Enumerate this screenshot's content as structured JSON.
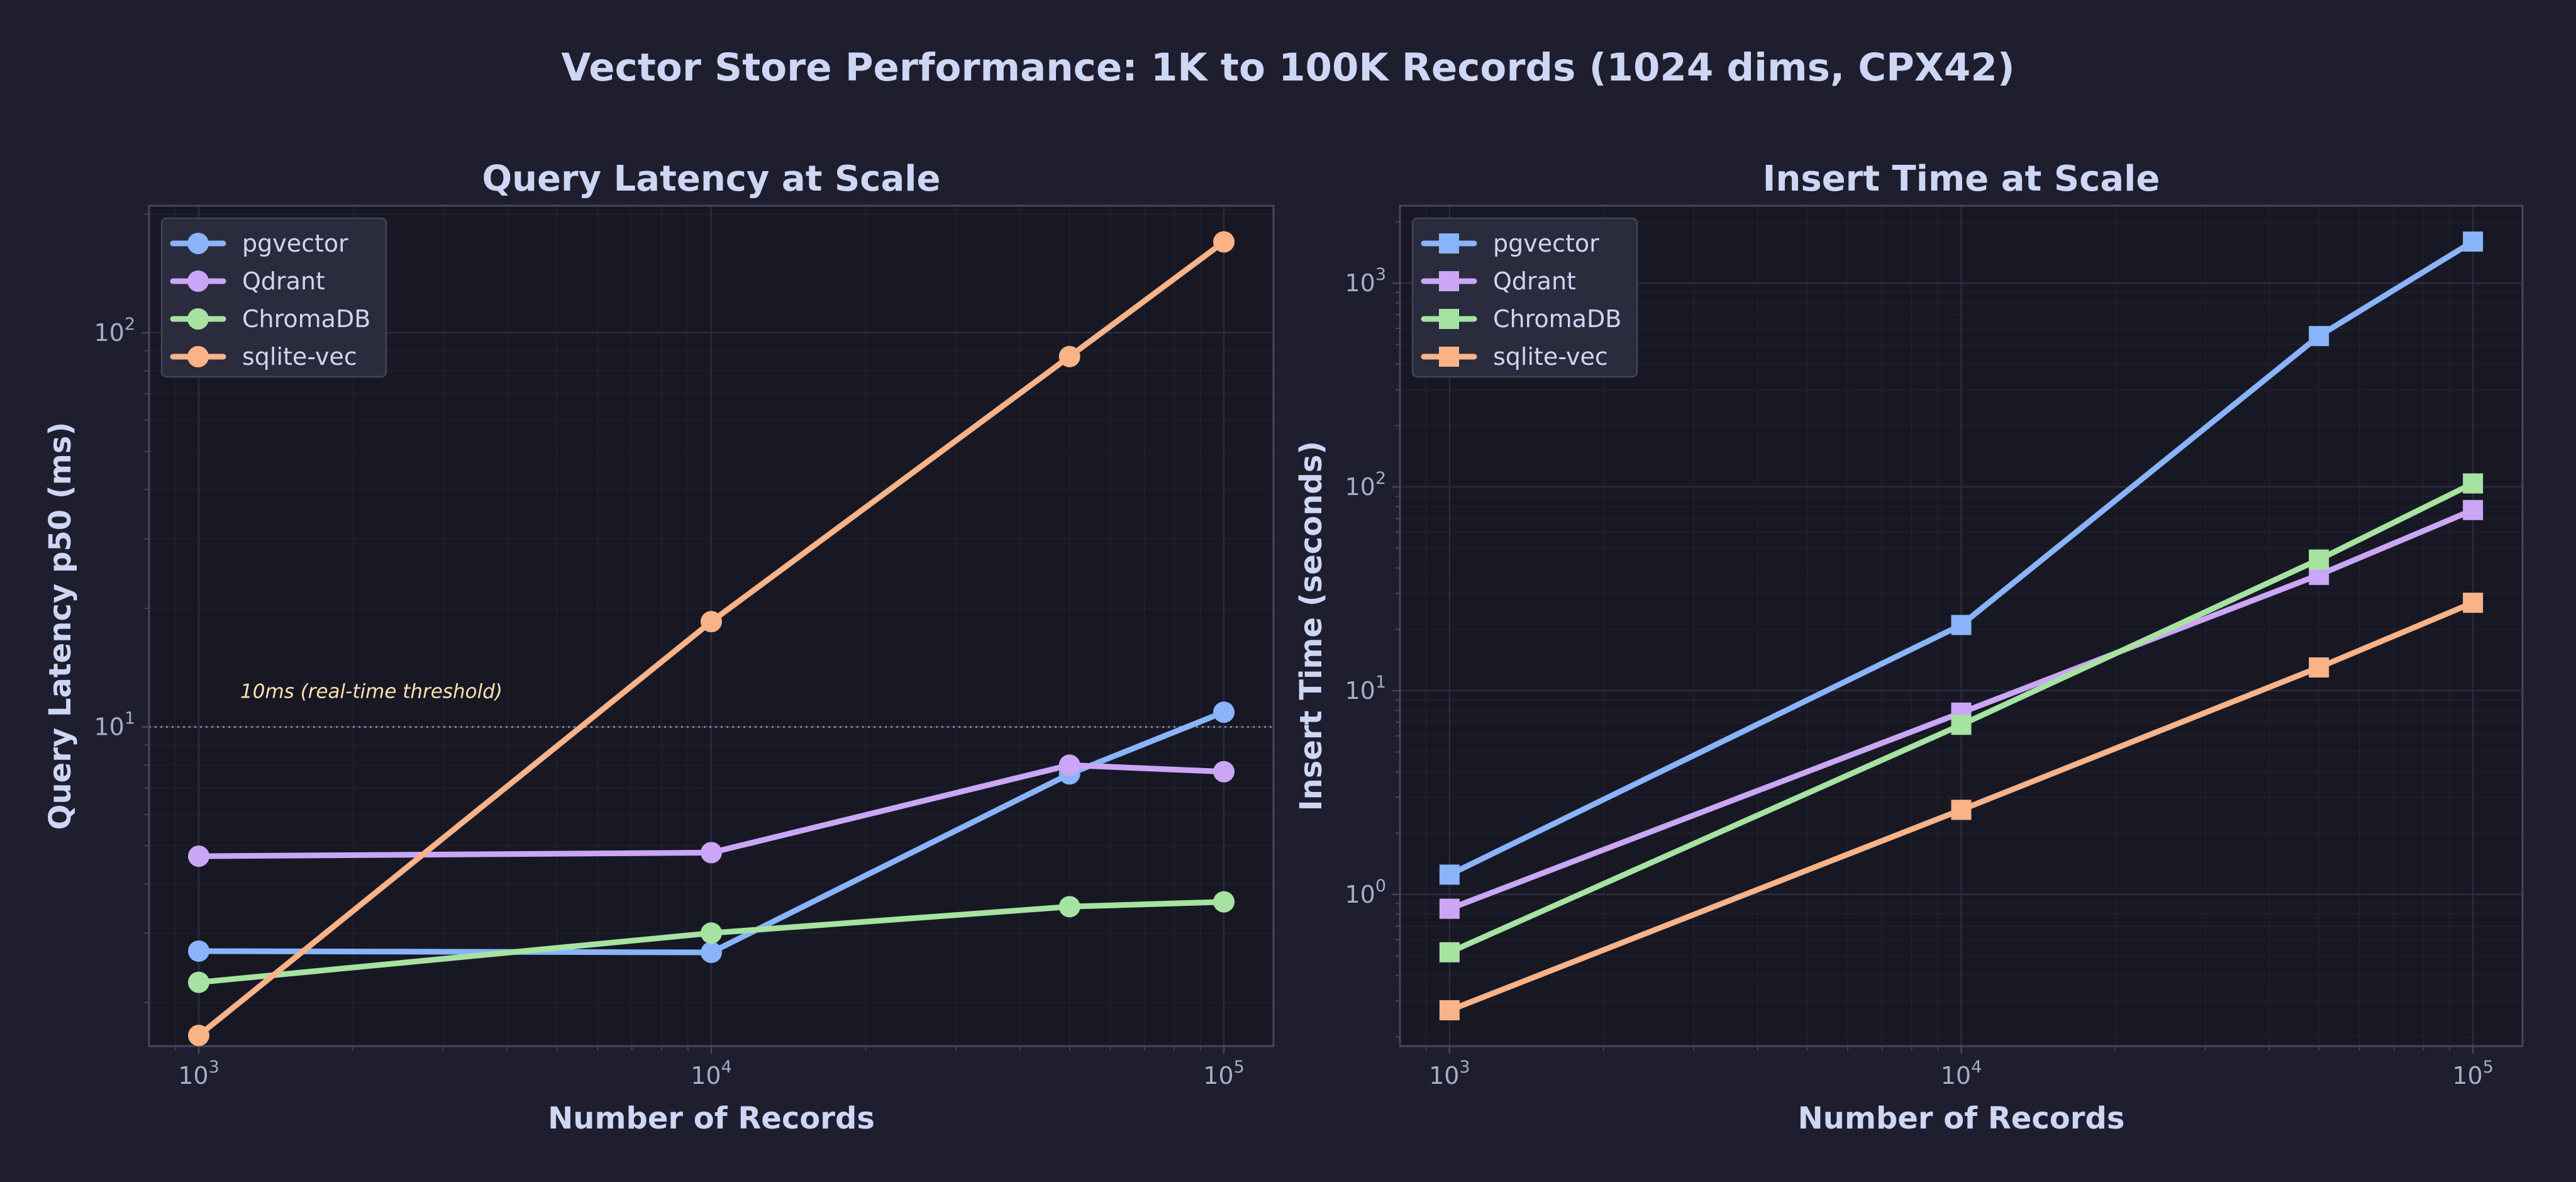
{
  "title": "Vector Store Performance: 1K to 100K Records (1024 dims, CPX42)",
  "colors": {
    "background": "#1e1e2e",
    "plot_background": "#181825",
    "spine": "#45475a",
    "grid": "#2a2b3c",
    "text": "#cdd6f4",
    "tick_text": "#a6adc8",
    "threshold": "#7f849c",
    "annotation": "#f9e2af",
    "legend_bg": "#2b2d3f",
    "legend_border": "#45475a"
  },
  "chart_data": [
    {
      "type": "line",
      "title": "Query Latency at Scale",
      "xlabel": "Number of Records",
      "ylabel": "Query Latency p50 (ms)",
      "xscale": "log",
      "yscale": "log",
      "xlim": [
        800,
        125000
      ],
      "ylim": [
        1.55,
        210
      ],
      "xticks": [
        {
          "value": 1000,
          "base": "10",
          "exp": "3"
        },
        {
          "value": 10000,
          "base": "10",
          "exp": "4"
        },
        {
          "value": 100000,
          "base": "10",
          "exp": "5"
        }
      ],
      "yticks": [
        {
          "value": 10,
          "base": "10",
          "exp": "1"
        },
        {
          "value": 100,
          "base": "10",
          "exp": "2"
        }
      ],
      "grid": true,
      "legend": "upper-left",
      "marker": "circle",
      "threshold": {
        "value": 10,
        "label": "10ms (real-time threshold)"
      },
      "x": [
        1000,
        10000,
        50000,
        100000
      ],
      "series": [
        {
          "name": "pgvector",
          "color": "#89b4fa",
          "values": [
            2.7,
            2.68,
            7.6,
            10.9
          ]
        },
        {
          "name": "Qdrant",
          "color": "#cba6f7",
          "values": [
            4.7,
            4.8,
            8.0,
            7.7
          ]
        },
        {
          "name": "ChromaDB",
          "color": "#a6e3a1",
          "values": [
            2.25,
            3.0,
            3.5,
            3.6
          ]
        },
        {
          "name": "sqlite-vec",
          "color": "#fab387",
          "values": [
            1.65,
            18.5,
            87,
            170
          ]
        }
      ]
    },
    {
      "type": "line",
      "title": "Insert Time at Scale",
      "xlabel": "Number of Records",
      "ylabel": "Insert Time (seconds)",
      "xscale": "log",
      "yscale": "log",
      "xlim": [
        800,
        125000
      ],
      "ylim": [
        0.18,
        2400
      ],
      "xticks": [
        {
          "value": 1000,
          "base": "10",
          "exp": "3"
        },
        {
          "value": 10000,
          "base": "10",
          "exp": "4"
        },
        {
          "value": 100000,
          "base": "10",
          "exp": "5"
        }
      ],
      "yticks": [
        {
          "value": 1,
          "base": "10",
          "exp": "0"
        },
        {
          "value": 10,
          "base": "10",
          "exp": "1"
        },
        {
          "value": 100,
          "base": "10",
          "exp": "2"
        },
        {
          "value": 1000,
          "base": "10",
          "exp": "3"
        }
      ],
      "grid": true,
      "legend": "upper-left",
      "marker": "square",
      "x": [
        1000,
        10000,
        50000,
        100000
      ],
      "series": [
        {
          "name": "pgvector",
          "color": "#89b4fa",
          "values": [
            1.25,
            21,
            550,
            1600
          ]
        },
        {
          "name": "Qdrant",
          "color": "#cba6f7",
          "values": [
            0.85,
            7.8,
            37,
            77
          ]
        },
        {
          "name": "ChromaDB",
          "color": "#a6e3a1",
          "values": [
            0.52,
            6.8,
            44,
            104
          ]
        },
        {
          "name": "sqlite-vec",
          "color": "#fab387",
          "values": [
            0.27,
            2.6,
            13,
            27
          ]
        }
      ]
    }
  ]
}
